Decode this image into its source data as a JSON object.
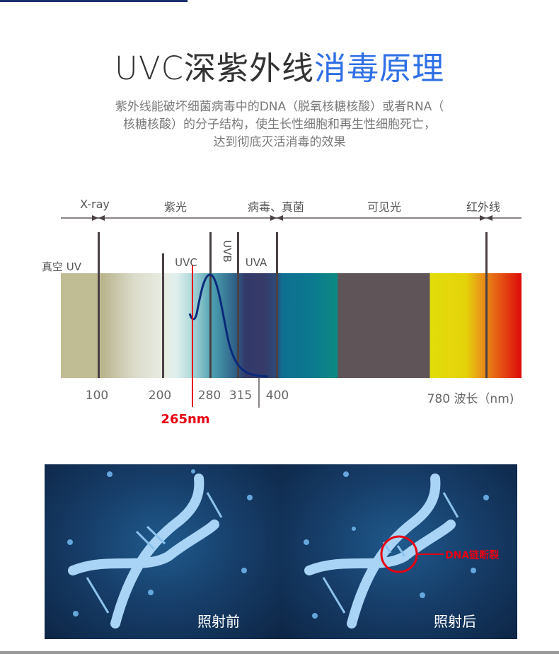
{
  "title": {
    "dark": "UVC深紫外线",
    "accent": "消毒原理",
    "accent_color": "#2f6fe6"
  },
  "description": [
    "紫外线能破坏细菌病毒中的DNA（脱氧核糖核酸）或者RNA（",
    "核糖核酸）的分子结构，使生长性细胞和再生性细胞死亡，",
    "达到彻底灭活消毒的效果"
  ],
  "spectrum": {
    "regions": [
      "X-ray",
      "紫光",
      "病毒、真菌",
      "可见光",
      "红外线"
    ],
    "vacuum_uv": "真空 UV",
    "bands": {
      "uvc": "UVC",
      "uvb": "UVB",
      "uva": "UVA"
    },
    "ticks": [
      "100",
      "200",
      "280",
      "315",
      "400",
      "780 波长（nm)"
    ],
    "marker": {
      "label": "265nm",
      "color": "#e60012"
    }
  },
  "panels": {
    "before": "照射前",
    "after": "照射后",
    "annotation": "DNA链断裂"
  }
}
